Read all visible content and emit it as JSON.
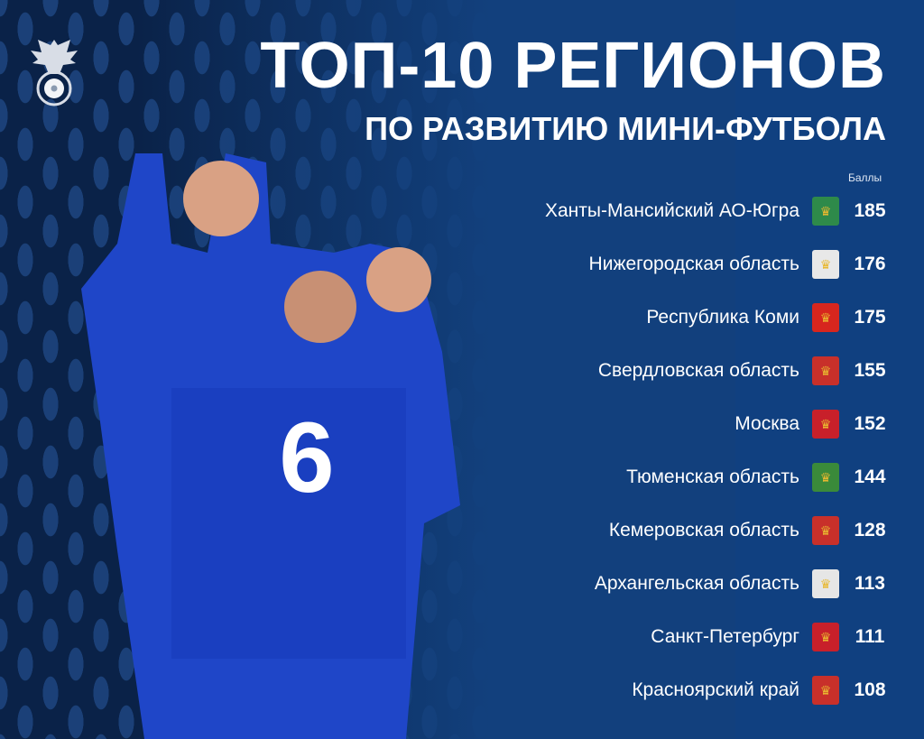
{
  "header": {
    "title": "ТОП-10 РЕГИОНОВ",
    "subtitle": "ПО РАЗВИТИЮ МИНИ-ФУТБОЛА",
    "score_label": "Баллы"
  },
  "colors": {
    "background": "#0a2248",
    "panel": "#104080",
    "text": "#ffffff"
  },
  "ranking": [
    {
      "region": "Ханты-Мансийский АО-Югра",
      "score": "185",
      "emblem": "khmao-coat-of-arms",
      "color": "#2e8a4a"
    },
    {
      "region": "Нижегородская область",
      "score": "176",
      "emblem": "nizhny-novgorod-coat-of-arms",
      "color": "#e8e8e8"
    },
    {
      "region": "Республика Коми",
      "score": "175",
      "emblem": "komi-coat-of-arms",
      "color": "#d7261e"
    },
    {
      "region": "Свердловская область",
      "score": "155",
      "emblem": "sverdlovsk-coat-of-arms",
      "color": "#c8302a"
    },
    {
      "region": "Москва",
      "score": "152",
      "emblem": "moscow-coat-of-arms",
      "color": "#c8202a"
    },
    {
      "region": "Тюменская область",
      "score": "144",
      "emblem": "tyumen-coat-of-arms",
      "color": "#3a8a3a"
    },
    {
      "region": "Кемеровская область",
      "score": "128",
      "emblem": "kemerovo-coat-of-arms",
      "color": "#c8302a"
    },
    {
      "region": "Архангельская область",
      "score": "113",
      "emblem": "arkhangelsk-coat-of-arms",
      "color": "#e6e6e6"
    },
    {
      "region": "Санкт-Петербург",
      "score": "111",
      "emblem": "saint-petersburg-coat-of-arms",
      "color": "#c8202a"
    },
    {
      "region": "Красноярский край",
      "score": "108",
      "emblem": "krasnoyarsk-coat-of-arms",
      "color": "#c8302a"
    }
  ]
}
